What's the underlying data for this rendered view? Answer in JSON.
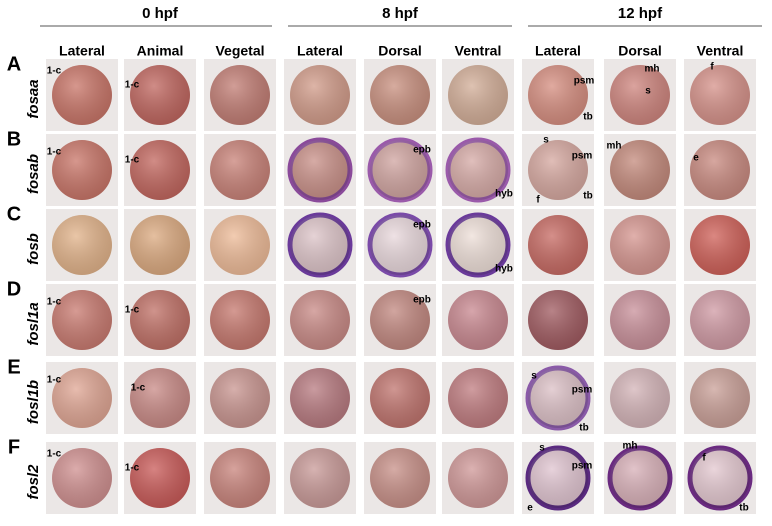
{
  "time_groups": [
    "0 hpf",
    "8 hpf",
    "12 hpf"
  ],
  "views": [
    "Lateral",
    "Animal",
    "Vegetal",
    "Lateral",
    "Dorsal",
    "Ventral",
    "Lateral",
    "Dorsal",
    "Ventral"
  ],
  "rows": [
    {
      "letter": "A",
      "gene": "fosaa",
      "cells": [
        [
          "1-c"
        ],
        [
          "1-c"
        ],
        [],
        [],
        [],
        [],
        [
          "psm",
          "tb"
        ],
        [
          "mh",
          "s"
        ],
        [
          "f"
        ]
      ]
    },
    {
      "letter": "B",
      "gene": "fosab",
      "cells": [
        [
          "1-c"
        ],
        [
          "1-c"
        ],
        [],
        [],
        [
          "epb"
        ],
        [
          "hyb"
        ],
        [
          "s",
          "psm",
          "f",
          "tb"
        ],
        [
          "mh"
        ],
        [
          "e"
        ]
      ]
    },
    {
      "letter": "C",
      "gene": "fosb",
      "cells": [
        [],
        [],
        [],
        [],
        [
          "epb"
        ],
        [
          "hyb"
        ],
        [],
        [],
        []
      ]
    },
    {
      "letter": "D",
      "gene": "fosl1a",
      "cells": [
        [
          "1-c"
        ],
        [
          "1-c"
        ],
        [],
        [],
        [
          "epb"
        ],
        [],
        [],
        [],
        []
      ]
    },
    {
      "letter": "E",
      "gene": "fosl1b",
      "cells": [
        [
          "1-c"
        ],
        [
          "1-c"
        ],
        [],
        [],
        [],
        [],
        [
          "s",
          "psm",
          "tb"
        ],
        [],
        []
      ]
    },
    {
      "letter": "F",
      "gene": "fosl2",
      "cells": [
        [
          "1-c"
        ],
        [
          "1-c"
        ],
        [],
        [],
        [],
        [],
        [
          "s",
          "psm",
          "e"
        ],
        [
          "mh"
        ],
        [
          "f",
          "tb"
        ]
      ]
    }
  ]
}
